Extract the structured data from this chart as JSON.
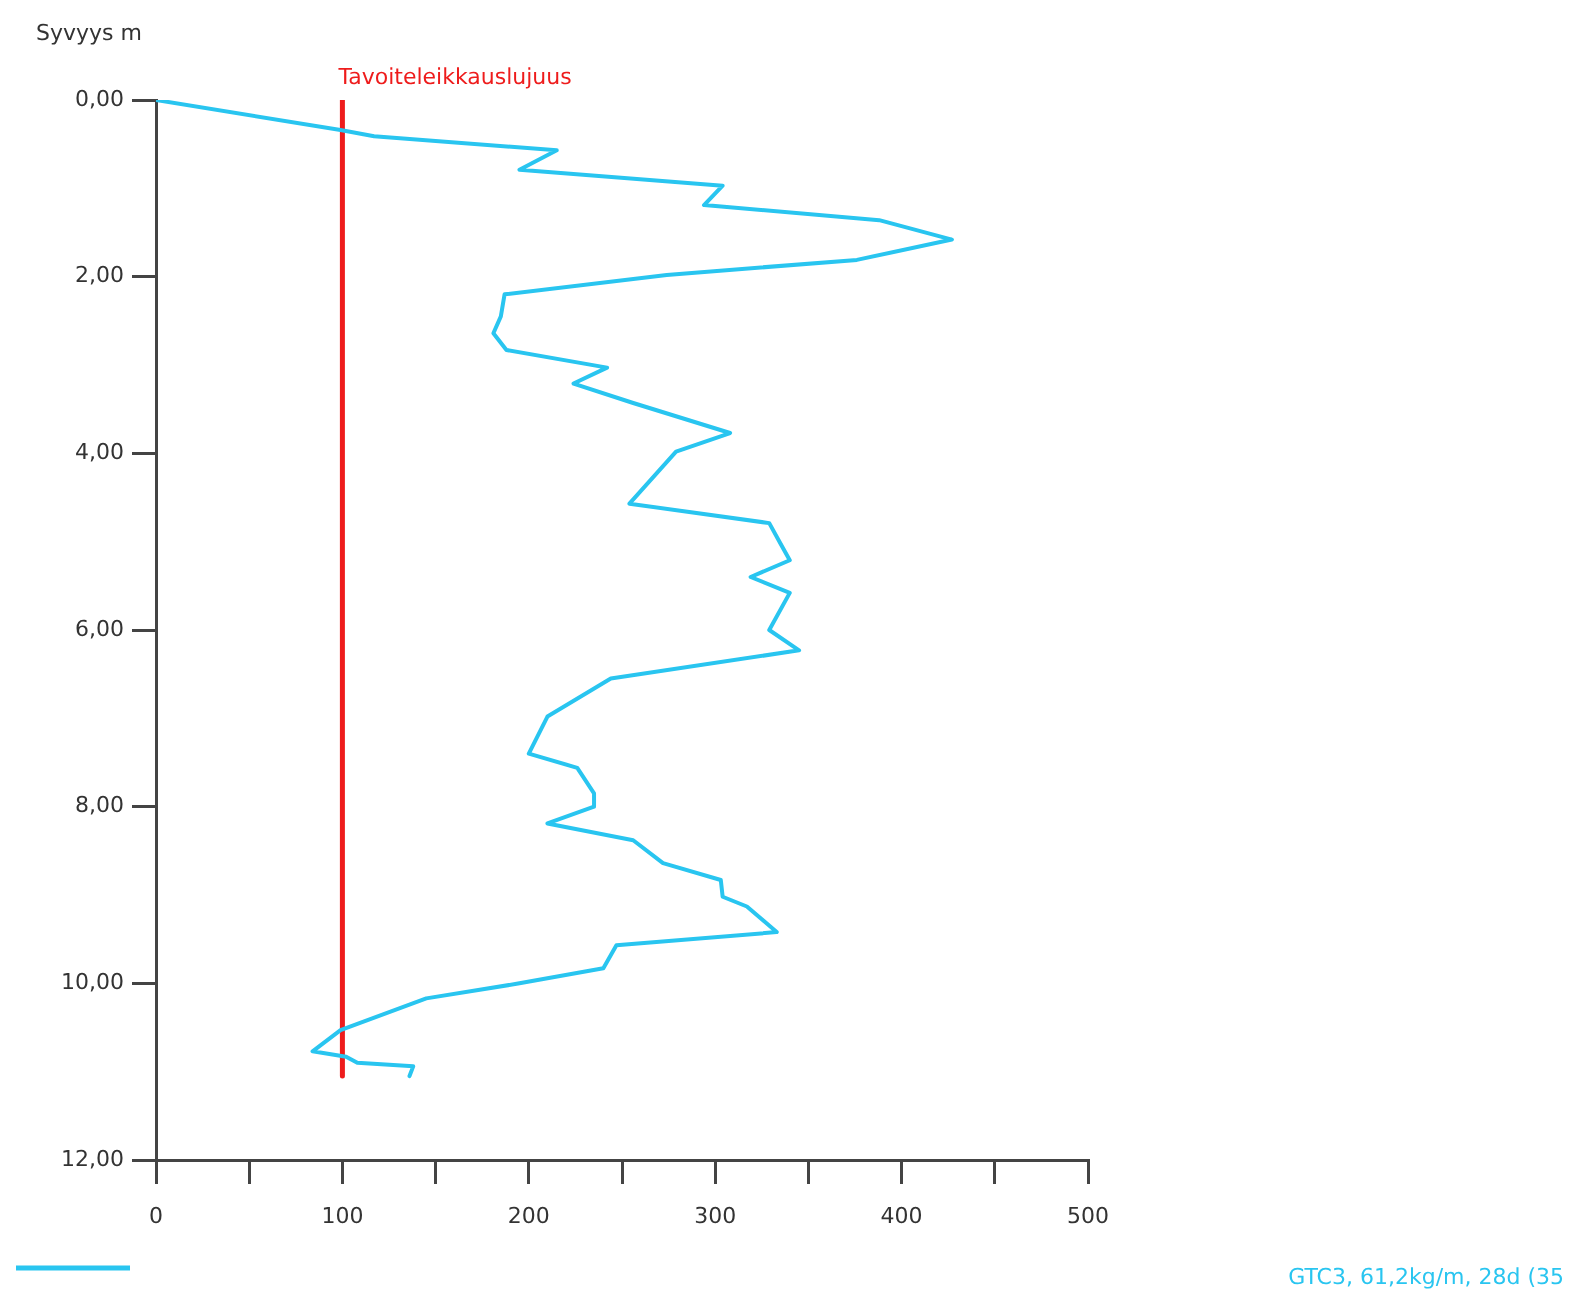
{
  "chart_data": {
    "type": "line",
    "ylabel": "Syvyys m",
    "legend": "bottom",
    "marker": "none",
    "xlim": [
      0,
      500
    ],
    "xticks": [
      0,
      {
        "value": 50,
        "label": null
      },
      100,
      {
        "value": 150,
        "label": null
      },
      200,
      {
        "value": 250,
        "label": null
      },
      300,
      {
        "value": 350,
        "label": null
      },
      400,
      {
        "value": 450,
        "label": null
      },
      500
    ],
    "ylim": [
      12,
      0
    ],
    "yticks": [
      {
        "value": 0,
        "label": "0,00"
      },
      {
        "value": 2,
        "label": "2,00"
      },
      {
        "value": 4,
        "label": "4,00"
      },
      {
        "value": 6,
        "label": "6,00"
      },
      {
        "value": 8,
        "label": "8,00"
      },
      {
        "value": 10,
        "label": "10,00"
      },
      {
        "value": 12,
        "label": "12,00"
      }
    ],
    "series": [
      {
        "name": "GTC3, 61,2kg/m, 28d (35",
        "color": "#29c5f0",
        "x": [
          0,
          99,
          117,
          215,
          195,
          304,
          294,
          388,
          427,
          376,
          274,
          187,
          185,
          181,
          188,
          242,
          224,
          256,
          308,
          279,
          254,
          329,
          335,
          340,
          319,
          340,
          329,
          345,
          244,
          210,
          200,
          226,
          235,
          235,
          210,
          256,
          272,
          303,
          304,
          317,
          333,
          247,
          240,
          195,
          145,
          99,
          84,
          102,
          108,
          138,
          136
        ],
        "values": [
          0,
          0.34,
          0.41,
          0.57,
          0.79,
          0.97,
          1.19,
          1.36,
          1.58,
          1.81,
          1.98,
          2.2,
          2.45,
          2.64,
          2.83,
          3.03,
          3.21,
          3.43,
          3.77,
          3.98,
          4.57,
          4.79,
          5.02,
          5.21,
          5.4,
          5.58,
          6,
          6.23,
          6.55,
          6.98,
          7.4,
          7.56,
          7.85,
          8,
          8.19,
          8.38,
          8.64,
          8.83,
          9.02,
          9.13,
          9.42,
          9.57,
          9.83,
          10,
          10.17,
          10.53,
          10.77,
          10.83,
          10.9,
          10.94,
          11.05
        ]
      },
      {
        "name": "Tavoiteleikkauslujuus",
        "color": "#ee1c1c",
        "x": [
          100,
          100
        ],
        "values": [
          0,
          11.05
        ]
      }
    ]
  }
}
